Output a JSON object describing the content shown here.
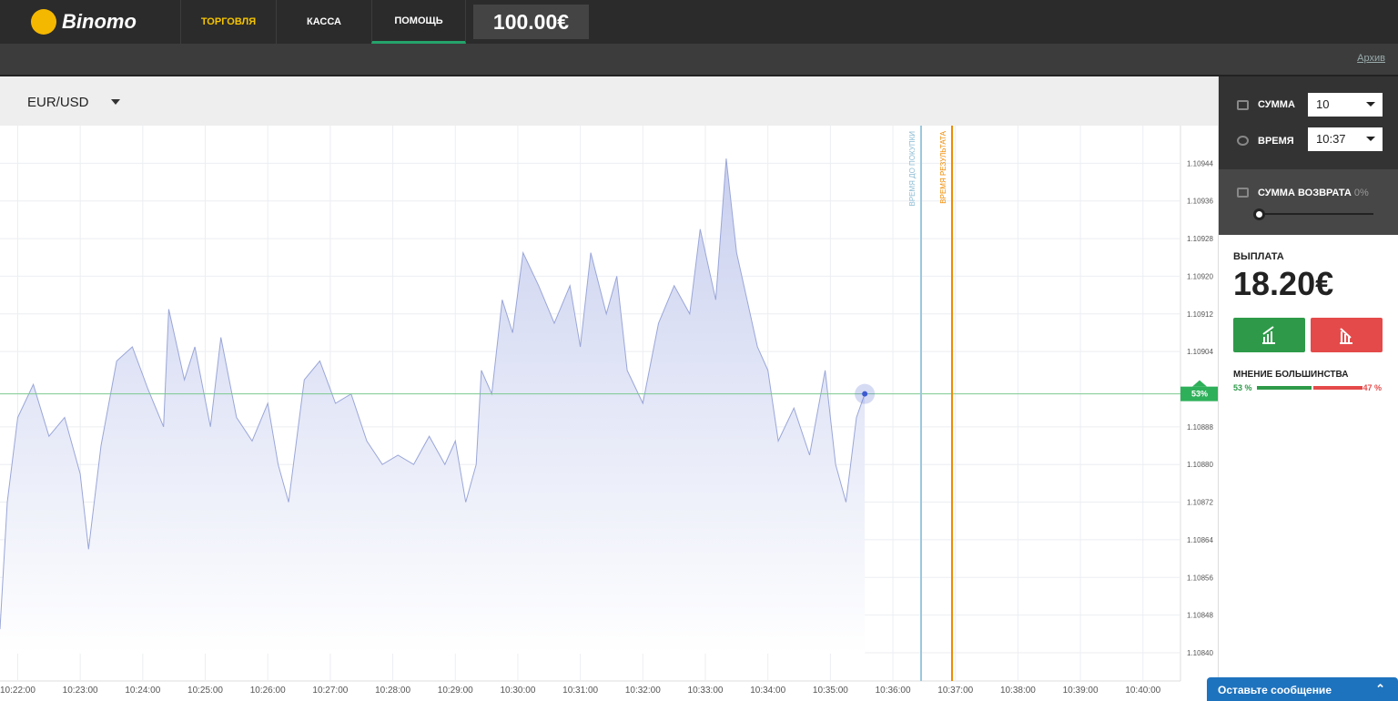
{
  "header": {
    "logo": "Binomo",
    "nav": [
      "ТОРГОВЛЯ",
      "КАССА",
      "ПОМОЩЬ"
    ],
    "balance": "100.00€"
  },
  "subbar": {
    "archive": "Архив"
  },
  "instrument": "EUR/USD",
  "chart_data": {
    "type": "line",
    "x": [
      "10:21:43",
      "10:21:50",
      "10:22:00",
      "10:22:15",
      "10:22:30",
      "10:22:45",
      "10:23:00",
      "10:23:08",
      "10:23:20",
      "10:23:35",
      "10:23:50",
      "10:24:05",
      "10:24:20",
      "10:24:25",
      "10:24:40",
      "10:24:50",
      "10:25:05",
      "10:25:15",
      "10:25:30",
      "10:25:45",
      "10:26:00",
      "10:26:10",
      "10:26:20",
      "10:26:35",
      "10:26:50",
      "10:27:05",
      "10:27:20",
      "10:27:35",
      "10:27:50",
      "10:28:05",
      "10:28:20",
      "10:28:35",
      "10:28:50",
      "10:29:00",
      "10:29:10",
      "10:29:20",
      "10:29:25",
      "10:29:35",
      "10:29:45",
      "10:29:55",
      "10:30:05",
      "10:30:20",
      "10:30:35",
      "10:30:50",
      "10:31:00",
      "10:31:10",
      "10:31:25",
      "10:31:35",
      "10:31:45",
      "10:32:00",
      "10:32:15",
      "10:32:30",
      "10:32:45",
      "10:32:55",
      "10:33:10",
      "10:33:20",
      "10:33:30",
      "10:33:40",
      "10:33:50",
      "10:34:00",
      "10:34:10",
      "10:34:25",
      "10:34:40",
      "10:34:55",
      "10:35:05",
      "10:35:15",
      "10:35:25",
      "10:35:33"
    ],
    "series": [
      {
        "name": "EUR/USD",
        "color": "#9aa6d8",
        "values": [
          1.10845,
          1.10872,
          1.1089,
          1.10897,
          1.10886,
          1.1089,
          1.10878,
          1.10862,
          1.10884,
          1.10902,
          1.10905,
          1.10896,
          1.10888,
          1.10913,
          1.10898,
          1.10905,
          1.10888,
          1.10907,
          1.1089,
          1.10885,
          1.10893,
          1.1088,
          1.10872,
          1.10898,
          1.10902,
          1.10893,
          1.10895,
          1.10885,
          1.1088,
          1.10882,
          1.1088,
          1.10886,
          1.1088,
          1.10885,
          1.10872,
          1.1088,
          1.109,
          1.10895,
          1.10915,
          1.10908,
          1.10925,
          1.10918,
          1.1091,
          1.10918,
          1.10905,
          1.10925,
          1.10912,
          1.1092,
          1.109,
          1.10893,
          1.1091,
          1.10918,
          1.10912,
          1.1093,
          1.10915,
          1.10945,
          1.10925,
          1.10915,
          1.10905,
          1.109,
          1.10885,
          1.10892,
          1.10882,
          1.109,
          1.1088,
          1.10872,
          1.1089,
          1.10895
        ]
      }
    ],
    "xlim": [
      "10:21:43",
      "10:40:36"
    ],
    "xticks": [
      "10:22:00",
      "10:23:00",
      "10:24:00",
      "10:25:00",
      "10:26:00",
      "10:27:00",
      "10:28:00",
      "10:29:00",
      "10:30:00",
      "10:31:00",
      "10:32:00",
      "10:33:00",
      "10:34:00",
      "10:35:00",
      "10:36:00",
      "10:37:00",
      "10:38:00",
      "10:39:00",
      "10:40:00"
    ],
    "ylim": [
      1.10834,
      1.10952
    ],
    "yticks": [
      1.10944,
      1.10936,
      1.10928,
      {
        "value": 1.1092,
        "label": "1.10920"
      },
      1.10912,
      1.10904,
      1.10888,
      {
        "value": 1.1088,
        "label": "1.10880"
      },
      1.10872,
      1.10864,
      1.10856,
      1.10848,
      {
        "value": 1.1084,
        "label": "1.10840"
      }
    ],
    "grid": true,
    "price_label": "53%",
    "purchase_line_label": "ВРЕМЯ ДО ПОКУПКИ",
    "result_line_label": "ВРЕМЯ РЕЗУЛЬТАТА"
  },
  "panel": {
    "amount_label": "СУММА",
    "amount": "10",
    "time_label": "ВРЕМЯ",
    "time": "10:37",
    "refund_label": "СУММА ВОЗВРАТА",
    "refund": "0%",
    "payout_label": "ВЫПЛАТА",
    "payout": "18.20€",
    "majority_label": "МНЕНИЕ БОЛЬШИНСТВА",
    "up": 53,
    "up_label": "53 %",
    "down": 47,
    "down_label": "47 %"
  },
  "chat": "Оставьте сообщение"
}
